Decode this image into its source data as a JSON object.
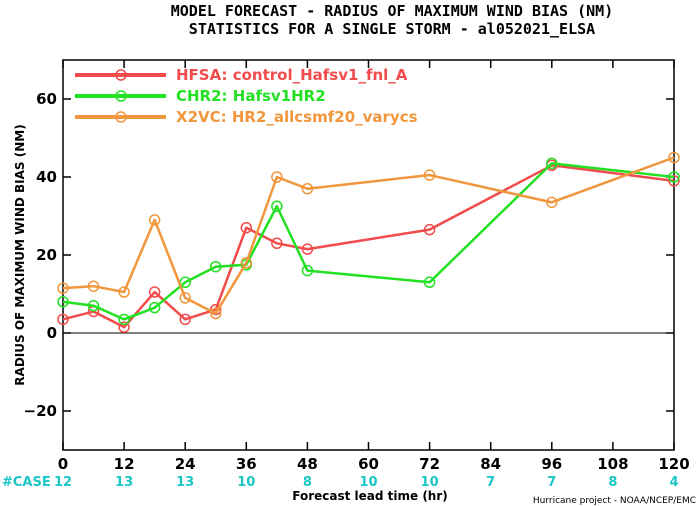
{
  "chart_data": {
    "type": "line",
    "title_line1": "MODEL FORECAST - RADIUS OF MAXIMUM WIND BIAS (NM)",
    "title_line2": "STATISTICS FOR A SINGLE STORM - al052021_ELSA",
    "ylabel": "RADIUS OF MAXIMUM WIND BIAS (NM)",
    "xlabel": "Forecast lead time (hr)",
    "xlim": [
      0,
      120
    ],
    "ylim": [
      -30,
      70
    ],
    "xticks": [
      0,
      12,
      24,
      36,
      48,
      60,
      72,
      84,
      96,
      108,
      120
    ],
    "xtick_labels": [
      "0",
      "12",
      "24",
      "36",
      "48",
      "60",
      "72",
      "84",
      "96",
      "108",
      "120"
    ],
    "yticks": [
      -20,
      0,
      20,
      40,
      60
    ],
    "ytick_labels": [
      "−20",
      "0",
      "20",
      "40",
      "60"
    ],
    "reference_line": 0,
    "legend_placement": "top-left",
    "series": [
      {
        "name": "HFSA: control_Hafsv1_fnl_A",
        "color": "#f24b4b",
        "points": [
          [
            0,
            3.5
          ],
          [
            6,
            5.5
          ],
          [
            12,
            1.5
          ],
          [
            18,
            10.5
          ],
          [
            24,
            3.5
          ],
          [
            30,
            6
          ],
          [
            36,
            27
          ],
          [
            42,
            23
          ],
          [
            48,
            21.5
          ],
          [
            72,
            26.5
          ],
          [
            96,
            43
          ],
          [
            120,
            39
          ]
        ]
      },
      {
        "name": "CHR2: Hafsv1HR2",
        "color": "#22e022",
        "points": [
          [
            0,
            8
          ],
          [
            6,
            7
          ],
          [
            12,
            3.5
          ],
          [
            18,
            6.5
          ],
          [
            24,
            13
          ],
          [
            30,
            17
          ],
          [
            36,
            17.5
          ],
          [
            42,
            32.5
          ],
          [
            48,
            16
          ],
          [
            72,
            13
          ],
          [
            96,
            43.5
          ],
          [
            120,
            40
          ]
        ]
      },
      {
        "name": "X2VC: HR2_allcsmf20_varycs",
        "color": "#f0963c",
        "points": [
          [
            0,
            11.5
          ],
          [
            6,
            12
          ],
          [
            12,
            10.5
          ],
          [
            18,
            29
          ],
          [
            24,
            9
          ],
          [
            30,
            5
          ],
          [
            36,
            18
          ],
          [
            42,
            40
          ],
          [
            48,
            37
          ],
          [
            72,
            40.5
          ],
          [
            96,
            33.5
          ],
          [
            120,
            45
          ]
        ]
      }
    ],
    "case_label": "#CASE",
    "case_color": "#1bc6c6",
    "case_hours": [
      0,
      12,
      24,
      36,
      48,
      60,
      72,
      84,
      96,
      108,
      120
    ],
    "case_counts": [
      "12",
      "13",
      "13",
      "10",
      "8",
      "10",
      "10",
      "7",
      "7",
      "8",
      "4"
    ],
    "credit": "Hurricane project - NOAA/NCEP/EMC"
  }
}
